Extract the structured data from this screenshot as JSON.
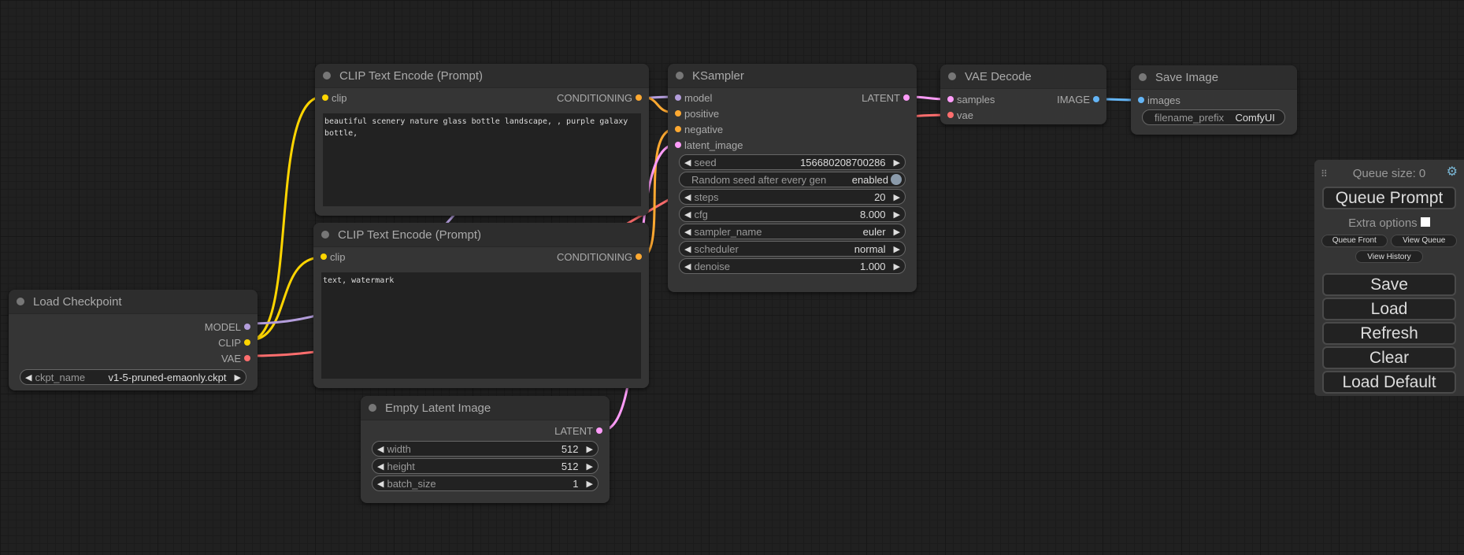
{
  "colors": {
    "clip": "#ffd500",
    "model": "#b39ddb",
    "vae": "#ff6e6e",
    "conditioning": "#ffa931",
    "latent": "#ff9cf9",
    "image": "#64b5f6"
  },
  "load_checkpoint": {
    "title": "Load Checkpoint",
    "outputs": [
      "MODEL",
      "CLIP",
      "VAE"
    ],
    "ckpt_label": "ckpt_name",
    "ckpt_value": "v1-5-pruned-emaonly.ckpt"
  },
  "clip_pos": {
    "title": "CLIP Text Encode (Prompt)",
    "input": "clip",
    "output": "CONDITIONING",
    "text": "beautiful scenery nature glass bottle landscape, , purple galaxy bottle,"
  },
  "clip_neg": {
    "title": "CLIP Text Encode (Prompt)",
    "input": "clip",
    "output": "CONDITIONING",
    "text": "text, watermark"
  },
  "empty_latent": {
    "title": "Empty Latent Image",
    "output": "LATENT",
    "widgets": [
      {
        "label": "width",
        "value": "512"
      },
      {
        "label": "height",
        "value": "512"
      },
      {
        "label": "batch_size",
        "value": "1"
      }
    ]
  },
  "ksampler": {
    "title": "KSampler",
    "inputs": [
      "model",
      "positive",
      "negative",
      "latent_image"
    ],
    "output": "LATENT",
    "seed": {
      "label": "seed",
      "value": "156680208700286"
    },
    "random_seed": {
      "label": "Random seed after every gen",
      "value": "enabled"
    },
    "widgets": [
      {
        "label": "steps",
        "value": "20"
      },
      {
        "label": "cfg",
        "value": "8.000"
      },
      {
        "label": "sampler_name",
        "value": "euler"
      },
      {
        "label": "scheduler",
        "value": "normal"
      },
      {
        "label": "denoise",
        "value": "1.000"
      }
    ]
  },
  "vae_decode": {
    "title": "VAE Decode",
    "inputs": [
      "samples",
      "vae"
    ],
    "output": "IMAGE"
  },
  "save_image": {
    "title": "Save Image",
    "input": "images",
    "prefix_label": "filename_prefix",
    "prefix_value": "ComfyUI"
  },
  "panel": {
    "queue_size": "Queue size: 0",
    "queue_prompt": "Queue Prompt",
    "extra_options": "Extra options",
    "queue_front": "Queue Front",
    "view_queue": "View Queue",
    "view_history": "View History",
    "save": "Save",
    "load": "Load",
    "refresh": "Refresh",
    "clear": "Clear",
    "load_default": "Load Default"
  }
}
